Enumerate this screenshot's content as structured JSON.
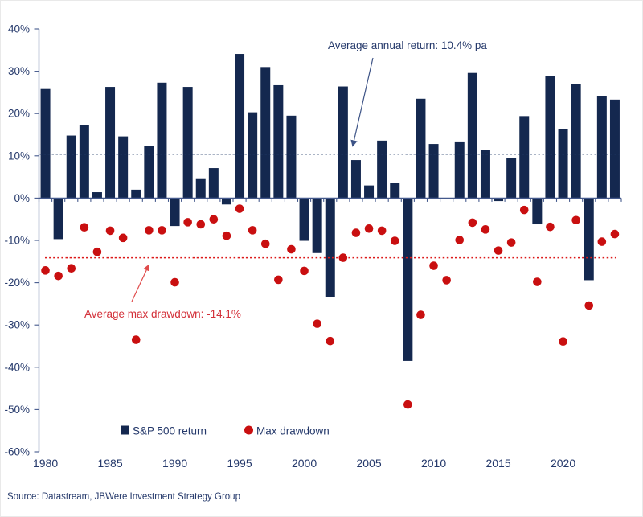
{
  "figure": {
    "source": "Source: Datastream, JBWere Investment Strategy Group"
  },
  "legend": {
    "series1": "S&P 500 return",
    "series2": "Max drawdown"
  },
  "annotations": {
    "avg_return": {
      "text": "Average annual return: 10.4% pa",
      "value": 10.4
    },
    "avg_drawdown": {
      "text": "Average max drawdown: -14.1%",
      "value": -14.1
    }
  },
  "colors": {
    "navy": "#14284F",
    "red": "#C90F10",
    "axis": "#44598C",
    "text_navy": "#25396B",
    "dash_navy": "#1F3766",
    "dash_red": "#DC1A1A",
    "red_text": "#D33039",
    "arrow_navy": "#3D5386",
    "arrow_red": "#E04B4B"
  },
  "chart_data": {
    "type": "bar",
    "title": "",
    "xlabel": "",
    "ylabel": "",
    "ylim": [
      -60,
      40
    ],
    "grid": false,
    "legend_position": "bottom-center",
    "x": [
      1980,
      1981,
      1982,
      1983,
      1984,
      1985,
      1986,
      1987,
      1988,
      1989,
      1990,
      1991,
      1992,
      1993,
      1994,
      1995,
      1996,
      1997,
      1998,
      1999,
      2000,
      2001,
      2002,
      2003,
      2004,
      2005,
      2006,
      2007,
      2008,
      2009,
      2010,
      2011,
      2012,
      2013,
      2014,
      2015,
      2016,
      2017,
      2018,
      2019,
      2020,
      2021,
      2022,
      2023,
      2024
    ],
    "x_ticks": [
      1980,
      1985,
      1990,
      1995,
      2000,
      2005,
      2010,
      2015,
      2020
    ],
    "y_ticks": [
      "40%",
      "30%",
      "20%",
      "10%",
      "0%",
      "-10%",
      "-20%",
      "-30%",
      "-40%",
      "-50%",
      "-60%"
    ],
    "series": [
      {
        "name": "S&P 500 return",
        "type": "bar",
        "values": [
          25.8,
          -9.7,
          14.8,
          17.3,
          1.4,
          26.3,
          14.6,
          2.0,
          12.4,
          27.3,
          -6.6,
          26.3,
          4.5,
          7.1,
          -1.5,
          34.1,
          20.3,
          31.0,
          26.7,
          19.5,
          -10.1,
          -13.0,
          -23.4,
          26.4,
          9.0,
          3.0,
          13.6,
          3.5,
          -38.5,
          23.5,
          12.8,
          0.0,
          13.4,
          29.6,
          11.4,
          -0.7,
          9.5,
          19.4,
          -6.2,
          28.9,
          16.3,
          26.9,
          -19.4,
          24.2,
          23.3
        ]
      },
      {
        "name": "Max drawdown",
        "type": "scatter",
        "values": [
          -17.1,
          -18.4,
          -16.6,
          -6.9,
          -12.7,
          -7.7,
          -9.4,
          -33.5,
          -7.6,
          -7.6,
          -19.9,
          -5.7,
          -6.2,
          -5.0,
          -8.9,
          -2.5,
          -7.6,
          -10.8,
          -19.3,
          -12.1,
          -17.2,
          -29.7,
          -33.8,
          -14.1,
          -8.2,
          -7.2,
          -7.7,
          -10.1,
          -48.8,
          -27.6,
          -16.0,
          -19.4,
          -9.9,
          -5.8,
          -7.4,
          -12.4,
          -10.5,
          -2.8,
          -19.8,
          -6.8,
          -33.9,
          -5.2,
          -25.4,
          -10.3,
          -8.5
        ]
      }
    ],
    "average_annual_return": 10.4,
    "average_max_drawdown": -14.1
  }
}
